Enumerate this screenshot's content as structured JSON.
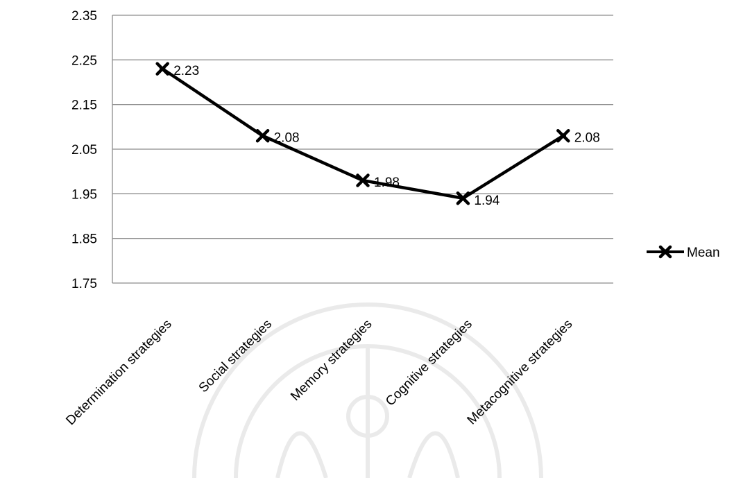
{
  "chart_data": {
    "type": "line",
    "categories": [
      "Determination strategies",
      "Social strategies",
      "Memory strategies",
      "Cognitive strategies",
      "Metacognitive strategies"
    ],
    "series": [
      {
        "name": "Mean",
        "values": [
          2.23,
          2.08,
          1.98,
          1.94,
          2.08
        ],
        "color": "#000000",
        "marker": "x-cross"
      }
    ],
    "data_labels": [
      "2.23",
      "2.08",
      "1.98",
      "1.94",
      "2.08"
    ],
    "ylim": [
      1.75,
      2.35
    ],
    "yticks": [
      "1.75",
      "1.85",
      "1.95",
      "2.05",
      "2.15",
      "2.25",
      "2.35"
    ],
    "grid": true,
    "legend": "right",
    "watermark": "faint university seal (background)"
  }
}
